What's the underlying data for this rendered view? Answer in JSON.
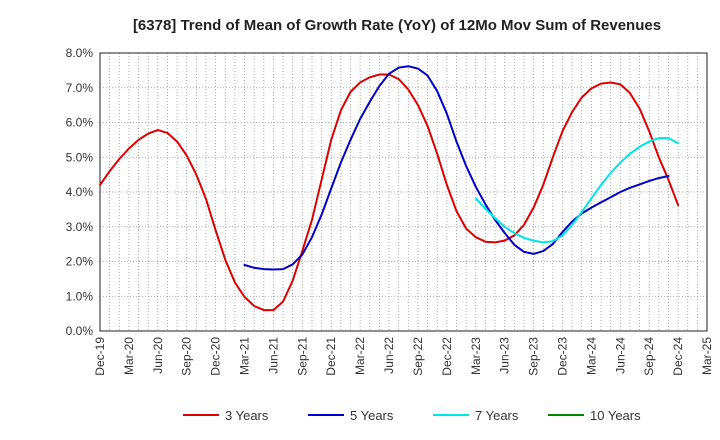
{
  "chart_data": {
    "type": "line",
    "title": "[6378]  Trend of Mean of Growth Rate (YoY) of 12Mo Mov Sum of Revenues",
    "xlabel": "",
    "ylabel": "",
    "ylim": [
      0,
      8
    ],
    "yticks": [
      "0.0%",
      "1.0%",
      "2.0%",
      "3.0%",
      "4.0%",
      "5.0%",
      "6.0%",
      "7.0%",
      "8.0%"
    ],
    "xticks": [
      "Dec-19",
      "Mar-20",
      "Jun-20",
      "Sep-20",
      "Dec-20",
      "Mar-21",
      "Jun-21",
      "Sep-21",
      "Dec-21",
      "Mar-22",
      "Jun-22",
      "Sep-22",
      "Dec-22",
      "Mar-23",
      "Jun-23",
      "Sep-23",
      "Dec-23",
      "Mar-24",
      "Jun-24",
      "Sep-24",
      "Dec-24",
      "Mar-25"
    ],
    "x_range_months": [
      0,
      63
    ],
    "grid": true,
    "legend_position": "bottom",
    "series": [
      {
        "name": "3 Years",
        "color": "#dd0000",
        "start_month": 0,
        "values": [
          4.2,
          4.6,
          4.95,
          5.25,
          5.5,
          5.68,
          5.78,
          5.7,
          5.45,
          5.05,
          4.5,
          3.8,
          2.9,
          2.05,
          1.4,
          0.98,
          0.72,
          0.6,
          0.6,
          0.85,
          1.45,
          2.3,
          3.2,
          4.35,
          5.5,
          6.35,
          6.88,
          7.15,
          7.3,
          7.38,
          7.38,
          7.25,
          6.95,
          6.5,
          5.9,
          5.1,
          4.2,
          3.45,
          2.95,
          2.7,
          2.57,
          2.55,
          2.6,
          2.75,
          3.05,
          3.55,
          4.2,
          5.0,
          5.75,
          6.3,
          6.72,
          6.98,
          7.12,
          7.15,
          7.1,
          6.85,
          6.4,
          5.75,
          5.0,
          4.35,
          3.62
        ]
      },
      {
        "name": "5 Years",
        "color": "#0000cc",
        "start_month": 15,
        "values": [
          1.9,
          1.82,
          1.78,
          1.77,
          1.78,
          1.92,
          2.2,
          2.7,
          3.35,
          4.1,
          4.85,
          5.5,
          6.1,
          6.6,
          7.05,
          7.4,
          7.58,
          7.62,
          7.55,
          7.35,
          6.9,
          6.25,
          5.45,
          4.75,
          4.15,
          3.65,
          3.2,
          2.82,
          2.48,
          2.28,
          2.22,
          2.3,
          2.5,
          2.85,
          3.15,
          3.38,
          3.55,
          3.7,
          3.85,
          4.0,
          4.12,
          4.22,
          4.32,
          4.4,
          4.46
        ]
      },
      {
        "name": "7 Years",
        "color": "#00e5e5",
        "start_month": 39,
        "values": [
          3.82,
          3.52,
          3.25,
          3.0,
          2.82,
          2.68,
          2.6,
          2.55,
          2.58,
          2.75,
          3.05,
          3.42,
          3.82,
          4.2,
          4.55,
          4.85,
          5.1,
          5.3,
          5.45,
          5.55,
          5.55,
          5.4
        ]
      },
      {
        "name": "10 Years",
        "color": "#008800",
        "start_month": 0,
        "values": []
      }
    ]
  }
}
